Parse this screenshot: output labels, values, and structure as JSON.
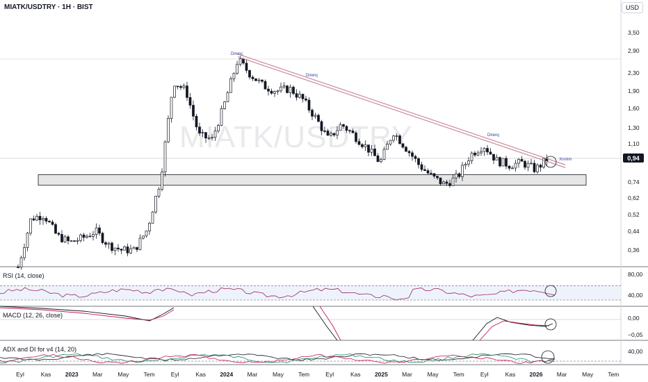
{
  "header": {
    "title": "MIATK/USDTRY · 1H · BIST",
    "currency": "USD"
  },
  "watermark": "MIATK/USDTRY",
  "colors": {
    "up": "#131722",
    "down": "#131722",
    "trendline": "#c98a9a",
    "rsi": "#a23b6b",
    "macd": "#131722",
    "signal": "#c2185b",
    "adx": "#131722",
    "di_plus": "#1b8a5a",
    "di_minus": "#c2185b"
  },
  "price_axis": {
    "ticks": [
      "3,50",
      "2,90",
      "2,30",
      "1,90",
      "1,60",
      "1,30",
      "1,10",
      "0,94",
      "0,74",
      "0,62",
      "0,52",
      "0,44",
      "0,36"
    ],
    "current": "0,94"
  },
  "time_axis": {
    "labels": [
      "Eyl",
      "Kas",
      "2023",
      "Mar",
      "May",
      "Tem",
      "Eyl",
      "Kas",
      "2024",
      "Mar",
      "May",
      "Tem",
      "Eyl",
      "Kas",
      "2025",
      "Mar",
      "May",
      "Tem",
      "Eyl",
      "Kas",
      "2026",
      "Mar",
      "May",
      "Tem"
    ]
  },
  "annotations": {
    "direnc1": "Direnç",
    "direnc2": "Direnç",
    "direnc3": "Direnç",
    "kirilim": "Kırılım"
  },
  "panes": {
    "rsi": {
      "label": "RSI (14, close)",
      "ticks": [
        "80,00",
        "40,00"
      ]
    },
    "macd": {
      "label": "MACD (12, 26, close)",
      "ticks": [
        "0,00",
        "−0,05"
      ]
    },
    "adx": {
      "label": "ADX and DI for v4 (14, 20)",
      "ticks": [
        "40,00"
      ]
    }
  },
  "chart_data": [
    {
      "type": "candlestick",
      "y_scale": "log",
      "y_ticks": [
        3.5,
        2.9,
        2.3,
        1.9,
        1.6,
        1.3,
        1.1,
        0.94,
        0.74,
        0.62,
        0.52,
        0.44,
        0.36
      ],
      "last_value": 0.94,
      "close_path": [
        [
          "2022-09",
          0.3
        ],
        [
          "2022-10",
          0.5
        ],
        [
          "2022-11",
          0.52
        ],
        [
          "2022-12",
          0.42
        ],
        [
          "2023-01",
          0.39
        ],
        [
          "2023-02",
          0.41
        ],
        [
          "2023-03",
          0.44
        ],
        [
          "2023-04",
          0.38
        ],
        [
          "2023-05",
          0.36
        ],
        [
          "2023-06",
          0.36
        ],
        [
          "2023-07",
          0.45
        ],
        [
          "2023-08",
          0.75
        ],
        [
          "2023-09",
          2.1
        ],
        [
          "2023-10",
          1.9
        ],
        [
          "2023-11",
          1.2
        ],
        [
          "2023-12",
          1.15
        ],
        [
          "2024-01",
          1.7
        ],
        [
          "2024-02",
          2.65
        ],
        [
          "2024-03",
          2.25
        ],
        [
          "2024-04",
          2.0
        ],
        [
          "2024-05",
          1.9
        ],
        [
          "2024-06",
          1.95
        ],
        [
          "2024-07",
          1.75
        ],
        [
          "2024-08",
          1.45
        ],
        [
          "2024-09",
          1.15
        ],
        [
          "2024-10",
          1.35
        ],
        [
          "2024-11",
          1.2
        ],
        [
          "2024-12",
          1.05
        ],
        [
          "2025-01",
          0.9
        ],
        [
          "2025-02",
          1.25
        ],
        [
          "2025-03",
          1.05
        ],
        [
          "2025-04",
          0.88
        ],
        [
          "2025-05",
          0.78
        ],
        [
          "2025-06",
          0.72
        ],
        [
          "2025-07",
          0.78
        ],
        [
          "2025-08",
          0.98
        ],
        [
          "2025-09",
          1.08
        ],
        [
          "2025-10",
          0.92
        ],
        [
          "2025-11",
          0.88
        ],
        [
          "2025-12",
          0.9
        ],
        [
          "2026-01",
          0.84
        ],
        [
          "2026-02",
          0.94
        ]
      ],
      "support_zone": [
        0.73,
        0.78
      ],
      "trendline": {
        "from": [
          "2024-02",
          2.8
        ],
        "to": [
          "2026-03",
          0.88
        ]
      }
    },
    {
      "type": "line",
      "name": "RSI (14, close)",
      "y_ticks": [
        80,
        40
      ]
    },
    {
      "type": "line",
      "name": "MACD (12, 26, close)",
      "y_ticks": [
        0,
        -0.05
      ]
    },
    {
      "type": "line",
      "name": "ADX and DI for v4 (14, 20)",
      "y_ticks": [
        40
      ]
    }
  ]
}
